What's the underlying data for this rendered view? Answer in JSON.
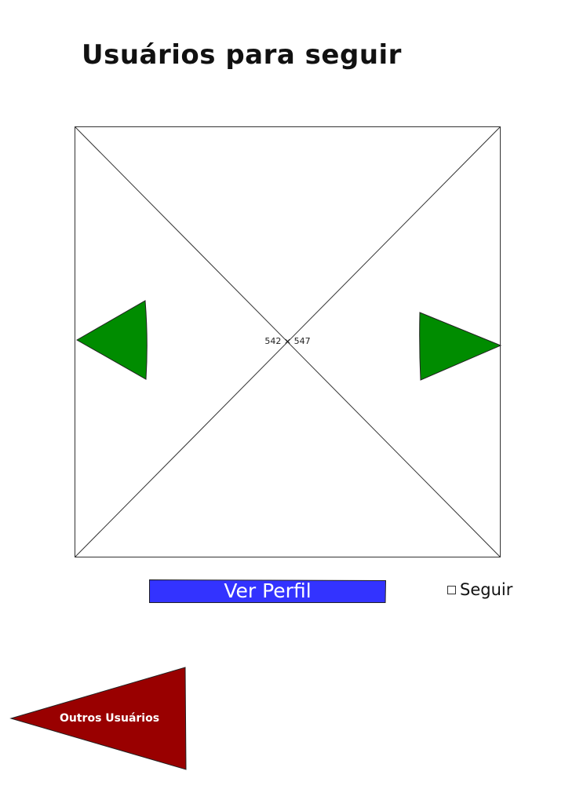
{
  "header": {
    "title": "Usuários para seguir"
  },
  "profile_image": {
    "size_label": "542 × 547",
    "prev_icon": "triangle-left-icon",
    "next_icon": "triangle-right-icon",
    "arrow_color": "#008C00"
  },
  "actions": {
    "view_profile_label": "Ver Perfil",
    "view_profile_color": "#3333FF",
    "follow_label": "Seguir",
    "follow_checked": false,
    "other_users_label": "Outros Usuários",
    "other_users_color": "#990000"
  }
}
